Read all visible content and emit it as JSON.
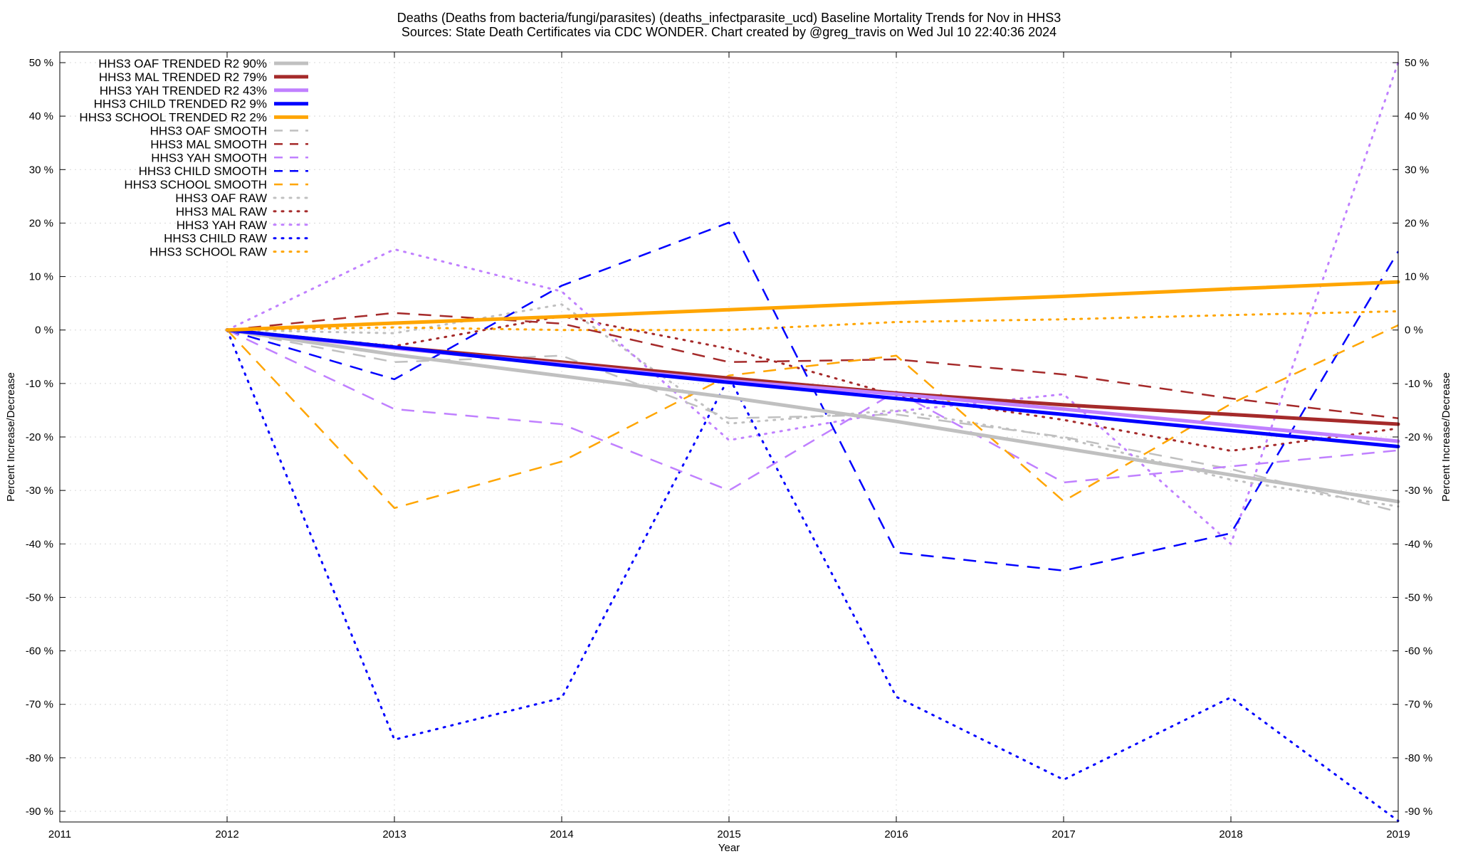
{
  "chart_data": {
    "type": "line",
    "title_line1": "Deaths (Deaths from bacteria/fungi/parasites) (deaths_infectparasite_ucd)  Baseline Mortality Trends for Nov in HHS3",
    "title_line2": "Sources: State Death Certificates via CDC WONDER.                Chart created by @greg_travis on Wed Jul 10 22:40:36 2024",
    "xlabel": "Year",
    "ylabel_left": "Percent Increase/Decrease",
    "ylabel_right": "Percent Increase/Decrease",
    "xlim": [
      2011,
      2019
    ],
    "ylim": [
      -92,
      52
    ],
    "x_ticks": [
      2011,
      2012,
      2013,
      2014,
      2015,
      2016,
      2017,
      2018,
      2019
    ],
    "y_ticks": [
      50,
      40,
      30,
      20,
      10,
      0,
      -10,
      -20,
      -30,
      -40,
      -50,
      -60,
      -70,
      -80,
      -90
    ],
    "y_tick_labels": [
      "50 %",
      "40 %",
      "30 %",
      "20 %",
      "10 %",
      "0 %",
      "-10 %",
      "-20 %",
      "-30 %",
      "-40 %",
      "-50 %",
      "-60 %",
      "-70 %",
      "-80 %",
      "-90 %"
    ],
    "grid": true,
    "legend_position": "top-left",
    "x": [
      2012,
      2013,
      2014,
      2015,
      2016,
      2017,
      2018,
      2019
    ],
    "series": [
      {
        "name": "HHS3 OAF TRENDED R2  90%",
        "style": "solid",
        "color": "#c0c0c0",
        "values": [
          0,
          -4.6,
          -8.6,
          -12.6,
          -17.1,
          -22.1,
          -27.1,
          -32.1
        ]
      },
      {
        "name": "HHS3 MAL TRENDED R2  79%",
        "style": "solid",
        "color": "#a52a2a",
        "values": [
          0,
          -3.2,
          -6.0,
          -9.0,
          -11.8,
          -14.0,
          -15.8,
          -17.6
        ]
      },
      {
        "name": "HHS3 YAH TRENDED R2  43%",
        "style": "solid",
        "color": "#c080ff",
        "values": [
          0,
          -3.4,
          -6.4,
          -9.5,
          -12.0,
          -14.8,
          -17.8,
          -20.8
        ]
      },
      {
        "name": "HHS3 CHILD TRENDED R2  9%",
        "style": "solid",
        "color": "#0000ff",
        "values": [
          0,
          -3.2,
          -6.6,
          -9.8,
          -12.8,
          -15.8,
          -18.8,
          -21.8
        ]
      },
      {
        "name": "HHS3 SCHOOL TRENDED R2  2%",
        "style": "solid",
        "color": "#ffa500",
        "values": [
          0,
          1.3,
          2.5,
          3.8,
          5.1,
          6.3,
          7.7,
          9.0
        ]
      },
      {
        "name": "HHS3 OAF SMOOTH",
        "style": "dashed",
        "color": "#c0c0c0",
        "values": [
          0,
          -6.0,
          -4.8,
          -16.5,
          -15.8,
          -20.0,
          -26.0,
          -34.0
        ]
      },
      {
        "name": "HHS3 MAL SMOOTH",
        "style": "dashed",
        "color": "#a52a2a",
        "values": [
          0,
          3.2,
          1.2,
          -6.0,
          -5.5,
          -8.3,
          -12.8,
          -16.5
        ]
      },
      {
        "name": "HHS3 YAH SMOOTH",
        "style": "dashed",
        "color": "#c080ff",
        "values": [
          0,
          -14.8,
          -17.6,
          -30.0,
          -11.5,
          -28.5,
          -25.5,
          -22.5
        ]
      },
      {
        "name": "HHS3 CHILD SMOOTH",
        "style": "dashed",
        "color": "#0000ff",
        "values": [
          0,
          -9.2,
          8.3,
          20.1,
          -41.6,
          -45.0,
          -38.0,
          14.7
        ]
      },
      {
        "name": "HHS3 SCHOOL SMOOTH",
        "style": "dashed",
        "color": "#ffa500",
        "values": [
          0,
          -33.3,
          -24.6,
          -8.5,
          -4.8,
          -32.0,
          -13.8,
          0.9
        ]
      },
      {
        "name": "HHS3 OAF RAW",
        "style": "dotted",
        "color": "#c0c0c0",
        "values": [
          0,
          -0.6,
          4.8,
          -17.5,
          -15.0,
          -20.2,
          -28.0,
          -33.0
        ]
      },
      {
        "name": "HHS3 MAL RAW",
        "style": "dotted",
        "color": "#a52a2a",
        "values": [
          0,
          -3.0,
          2.6,
          -3.5,
          -12.2,
          -16.8,
          -22.6,
          -18.4
        ]
      },
      {
        "name": "HHS3 YAH RAW",
        "style": "dotted",
        "color": "#c080ff",
        "values": [
          0,
          15.1,
          7.2,
          -20.6,
          -15.2,
          -12.0,
          -40.0,
          50.0
        ]
      },
      {
        "name": "HHS3 CHILD RAW",
        "style": "dotted",
        "color": "#0000ff",
        "values": [
          0,
          -76.6,
          -68.8,
          -8.8,
          -68.6,
          -84.1,
          -68.7,
          -91.8
        ]
      },
      {
        "name": "HHS3 SCHOOL RAW",
        "style": "dotted",
        "color": "#ffa500",
        "values": [
          0,
          0.5,
          0.0,
          0.0,
          1.5,
          2.0,
          2.8,
          3.5
        ]
      }
    ]
  }
}
